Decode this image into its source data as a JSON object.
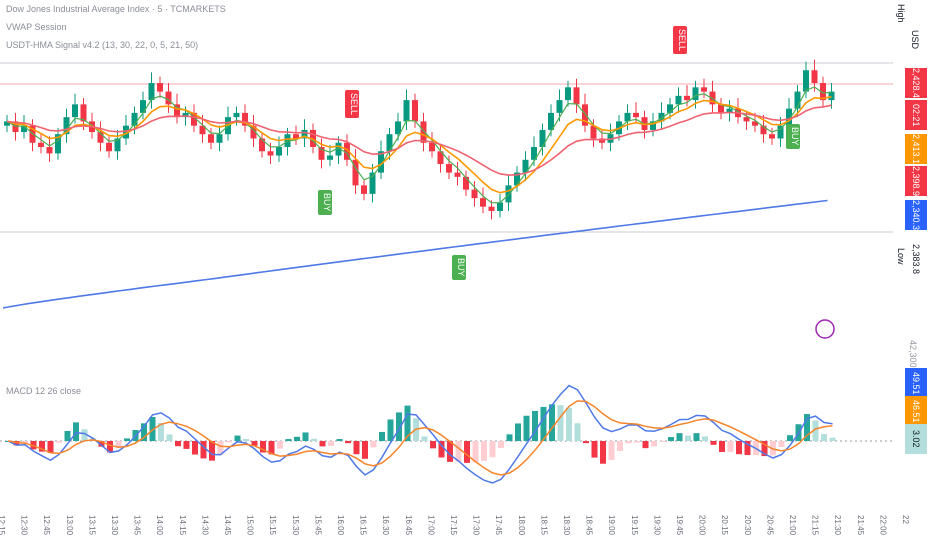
{
  "legend": {
    "main": "Dow Jones Industrial Average Index · 5 · TCMARKETS",
    "vwap": "VWAP Session",
    "indicator": "USDT-HMA Signal v4.2 (13, 30, 22, 0, 5, 21, 50)",
    "macd": "MACD 12 26 close"
  },
  "price_axis": {
    "high_label": "High",
    "currency": "USD",
    "low_label": "Low",
    "tags": [
      {
        "text": "42,428.40",
        "color": "#f23645"
      },
      {
        "text": "02:21",
        "color": "#f23645"
      },
      {
        "text": "42,413.16",
        "color": "#ff9800"
      },
      {
        "text": "42,398.92",
        "color": "#f23645"
      },
      {
        "text": "42,340.38",
        "color": "#2962ff"
      },
      {
        "text": "42,383.80",
        "color": "#131722"
      }
    ],
    "macd_tags": [
      {
        "text": "49.51",
        "color": "#2962ff"
      },
      {
        "text": "46.51",
        "color": "#ff9800"
      },
      {
        "text": "3.02",
        "color": "#b2dfdb"
      }
    ],
    "macd_top": "42,300.00"
  },
  "time_axis": [
    "12:15",
    "12:30",
    "12:45",
    "13:00",
    "13:15",
    "13:30",
    "13:45",
    "14:00",
    "14:15",
    "14:30",
    "14:45",
    "15:00",
    "15:15",
    "15:30",
    "15:45",
    "16:00",
    "16:15",
    "16:30",
    "16:45",
    "17:00",
    "17:15",
    "17:30",
    "17:45",
    "18:00",
    "18:15",
    "18:30",
    "18:45",
    "19:00",
    "19:15",
    "19:30",
    "19:45",
    "20:00",
    "20:15",
    "20:30",
    "20:45",
    "21:00",
    "21:15",
    "21:30",
    "21:45",
    "22:00",
    "22"
  ],
  "signals": [
    {
      "type": "SELL",
      "color": "#f23645"
    },
    {
      "type": "BUY",
      "color": "#4caf50"
    },
    {
      "type": "BUY",
      "color": "#4caf50"
    },
    {
      "type": "SELL",
      "color": "#f23645"
    },
    {
      "type": "BUY",
      "color": "#4caf50"
    }
  ],
  "colors": {
    "up": "#089981",
    "down": "#f23645",
    "hma_fast": "#4caf50",
    "hma_mid": "#ff9800",
    "hma_slow": "#f06270",
    "ma_long": "#4f79e6",
    "macd": "#4f79e6",
    "signal": "#f5842a",
    "hist_up": "#26a69a",
    "hist_up_light": "#b2dfdb",
    "hist_down": "#f23645",
    "hist_down_light": "#ffcdd2"
  },
  "chart_data": {
    "type": "line",
    "title": "Dow Jones Industrial Average Index · 5 · TCMARKETS",
    "xlabel": "",
    "ylabel": "USD",
    "candles_close": [
      42410,
      42405,
      42408,
      42400,
      42398,
      42395,
      42404,
      42412,
      42418,
      42410,
      42405,
      42400,
      42396,
      42402,
      42408,
      42414,
      42420,
      42428,
      42424,
      42418,
      42412,
      42414,
      42408,
      42404,
      42400,
      42404,
      42412,
      42414,
      42408,
      42402,
      42396,
      42394,
      42398,
      42404,
      42402,
      42406,
      42398,
      42392,
      42394,
      42400,
      42392,
      42380,
      42376,
      42386,
      42396,
      42404,
      42410,
      42420,
      42410,
      42400,
      42396,
      42390,
      42386,
      42384,
      42378,
      42374,
      42370,
      42368,
      42372,
      42380,
      42386,
      42392,
      42398,
      42406,
      42414,
      42420,
      42426,
      42418,
      42408,
      42402,
      42400,
      42404,
      42410,
      42414,
      42412,
      42406,
      42410,
      42414,
      42418,
      42422,
      42420,
      42426,
      42424,
      42418,
      42414,
      42416,
      42412,
      42410,
      42408,
      42404,
      42402,
      42408,
      42416,
      42424,
      42434,
      42428,
      42420,
      42424
    ],
    "series": [
      {
        "name": "HMA fast",
        "values": []
      },
      {
        "name": "HMA mid",
        "values": []
      },
      {
        "name": "HMA slow",
        "values": []
      },
      {
        "name": "MA long",
        "values": []
      }
    ],
    "grid": false,
    "legend": "top-left"
  }
}
